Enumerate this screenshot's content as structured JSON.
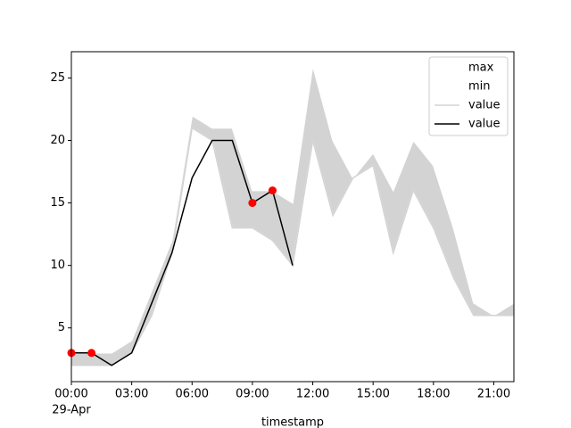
{
  "chart_data": {
    "type": "line",
    "x": [
      0,
      1,
      2,
      3,
      4,
      5,
      6,
      7,
      8,
      9,
      10,
      11,
      12,
      13,
      14,
      15,
      16,
      17,
      18,
      19,
      20,
      21,
      22
    ],
    "x_date_label": "29-Apr",
    "xlabel": "timestamp",
    "xlim": [
      0,
      22
    ],
    "xticks": [
      {
        "value": 0,
        "label": "00:00"
      },
      {
        "value": 3,
        "label": "03:00"
      },
      {
        "value": 6,
        "label": "06:00"
      },
      {
        "value": 9,
        "label": "09:00"
      },
      {
        "value": 12,
        "label": "12:00"
      },
      {
        "value": 15,
        "label": "15:00"
      },
      {
        "value": 18,
        "label": "18:00"
      },
      {
        "value": 21,
        "label": "21:00"
      }
    ],
    "ylim": [
      0.7,
      27.1
    ],
    "yticks": [
      5,
      10,
      15,
      20,
      25
    ],
    "band_color": "lightgray",
    "legend": "upper right",
    "series": [
      {
        "name": "max",
        "color": "white",
        "values": [
          3,
          3,
          3,
          4,
          8,
          12,
          22,
          21,
          21,
          16,
          16,
          15,
          26,
          20,
          17,
          19,
          16,
          20,
          18,
          13,
          7,
          6,
          7
        ]
      },
      {
        "name": "min",
        "color": "white",
        "values": [
          2,
          2,
          2,
          3,
          6,
          11,
          21,
          20,
          13,
          13,
          12,
          10,
          20,
          14,
          17,
          18,
          11,
          16,
          13,
          9,
          6,
          6,
          6
        ]
      },
      {
        "name": "value",
        "color": "lightgray",
        "values": [
          2,
          2,
          2,
          3,
          6,
          11,
          21,
          20,
          13,
          13,
          12,
          10,
          20,
          14,
          17,
          18,
          11,
          16,
          13,
          9,
          6,
          6,
          6
        ]
      },
      {
        "name": "value",
        "color": "black",
        "values": [
          3,
          3,
          2,
          3,
          7,
          11,
          17,
          20,
          20,
          15,
          16,
          10,
          null,
          null,
          null,
          null,
          null,
          null,
          null,
          null,
          null,
          null,
          null
        ]
      }
    ],
    "markers": {
      "color": "red",
      "x": [
        0,
        1,
        9,
        10
      ],
      "values": [
        3,
        3,
        15,
        16
      ]
    }
  }
}
